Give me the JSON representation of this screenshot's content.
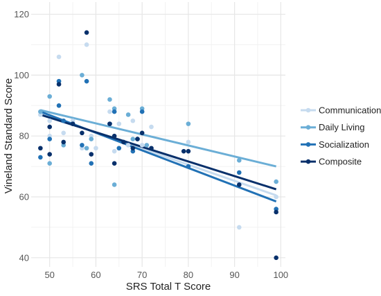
{
  "chart_data": {
    "type": "scatter",
    "xlabel": "SRS Total T Score",
    "ylabel": "Vineland Standard Score",
    "xlim": [
      46,
      101
    ],
    "ylim": [
      37,
      124
    ],
    "xticks": [
      50,
      60,
      70,
      80,
      90,
      100
    ],
    "yticks": [
      40,
      60,
      80,
      100,
      120
    ],
    "grid": true,
    "legend_position": "right",
    "series": [
      {
        "name": "Communication",
        "color": "#c6dbef",
        "trend": {
          "x": [
            48,
            99
          ],
          "y": [
            87.5,
            60.5
          ]
        },
        "points": [
          {
            "x": 48,
            "y": 87
          },
          {
            "x": 50,
            "y": 85
          },
          {
            "x": 50,
            "y": 80
          },
          {
            "x": 52,
            "y": 106
          },
          {
            "x": 53,
            "y": 81
          },
          {
            "x": 55,
            "y": 85
          },
          {
            "x": 57,
            "y": 76
          },
          {
            "x": 58,
            "y": 110
          },
          {
            "x": 59,
            "y": 80
          },
          {
            "x": 60,
            "y": 76
          },
          {
            "x": 63,
            "y": 88
          },
          {
            "x": 64,
            "y": 75
          },
          {
            "x": 65,
            "y": 84
          },
          {
            "x": 67,
            "y": 77
          },
          {
            "x": 68,
            "y": 85
          },
          {
            "x": 70,
            "y": 77
          },
          {
            "x": 72,
            "y": 83
          },
          {
            "x": 80,
            "y": 78
          },
          {
            "x": 91,
            "y": 50
          },
          {
            "x": 99,
            "y": 60
          }
        ]
      },
      {
        "name": "Daily Living",
        "color": "#6baed6",
        "trend": {
          "x": [
            48,
            99
          ],
          "y": [
            88.5,
            70
          ]
        },
        "points": [
          {
            "x": 48,
            "y": 88
          },
          {
            "x": 50,
            "y": 93
          },
          {
            "x": 50,
            "y": 71
          },
          {
            "x": 52,
            "y": 98
          },
          {
            "x": 53,
            "y": 77
          },
          {
            "x": 57,
            "y": 100
          },
          {
            "x": 58,
            "y": 76
          },
          {
            "x": 59,
            "y": 79
          },
          {
            "x": 63,
            "y": 92
          },
          {
            "x": 64,
            "y": 89
          },
          {
            "x": 64,
            "y": 64
          },
          {
            "x": 67,
            "y": 87
          },
          {
            "x": 68,
            "y": 79
          },
          {
            "x": 70,
            "y": 89
          },
          {
            "x": 71,
            "y": 77
          },
          {
            "x": 80,
            "y": 84
          },
          {
            "x": 91,
            "y": 72
          },
          {
            "x": 99,
            "y": 65
          }
        ]
      },
      {
        "name": "Socialization",
        "color": "#2171b5",
        "trend": {
          "x": [
            48,
            99
          ],
          "y": [
            88,
            58.5
          ]
        },
        "points": [
          {
            "x": 48,
            "y": 73
          },
          {
            "x": 50,
            "y": 79
          },
          {
            "x": 52,
            "y": 90
          },
          {
            "x": 52,
            "y": 98
          },
          {
            "x": 53,
            "y": 85
          },
          {
            "x": 55,
            "y": 84
          },
          {
            "x": 57,
            "y": 77
          },
          {
            "x": 58,
            "y": 98
          },
          {
            "x": 59,
            "y": 71
          },
          {
            "x": 63,
            "y": 84
          },
          {
            "x": 64,
            "y": 88
          },
          {
            "x": 65,
            "y": 76
          },
          {
            "x": 68,
            "y": 75
          },
          {
            "x": 69,
            "y": 79
          },
          {
            "x": 70,
            "y": 88
          },
          {
            "x": 80,
            "y": 70
          },
          {
            "x": 91,
            "y": 68
          },
          {
            "x": 99,
            "y": 56
          }
        ]
      },
      {
        "name": "Composite",
        "color": "#08306b",
        "trend": {
          "x": [
            48,
            99
          ],
          "y": [
            87,
            62.5
          ]
        },
        "points": [
          {
            "x": 48,
            "y": 76
          },
          {
            "x": 50,
            "y": 83
          },
          {
            "x": 50,
            "y": 74
          },
          {
            "x": 52,
            "y": 97
          },
          {
            "x": 53,
            "y": 78
          },
          {
            "x": 55,
            "y": 84
          },
          {
            "x": 57,
            "y": 81
          },
          {
            "x": 58,
            "y": 114
          },
          {
            "x": 59,
            "y": 74
          },
          {
            "x": 63,
            "y": 84
          },
          {
            "x": 64,
            "y": 80
          },
          {
            "x": 64,
            "y": 71
          },
          {
            "x": 66,
            "y": 78
          },
          {
            "x": 68,
            "y": 76
          },
          {
            "x": 69,
            "y": 79
          },
          {
            "x": 70,
            "y": 81
          },
          {
            "x": 72,
            "y": 76
          },
          {
            "x": 79,
            "y": 75
          },
          {
            "x": 80,
            "y": 75
          },
          {
            "x": 91,
            "y": 64
          },
          {
            "x": 99,
            "y": 55
          },
          {
            "x": 99,
            "y": 40
          }
        ]
      }
    ]
  }
}
